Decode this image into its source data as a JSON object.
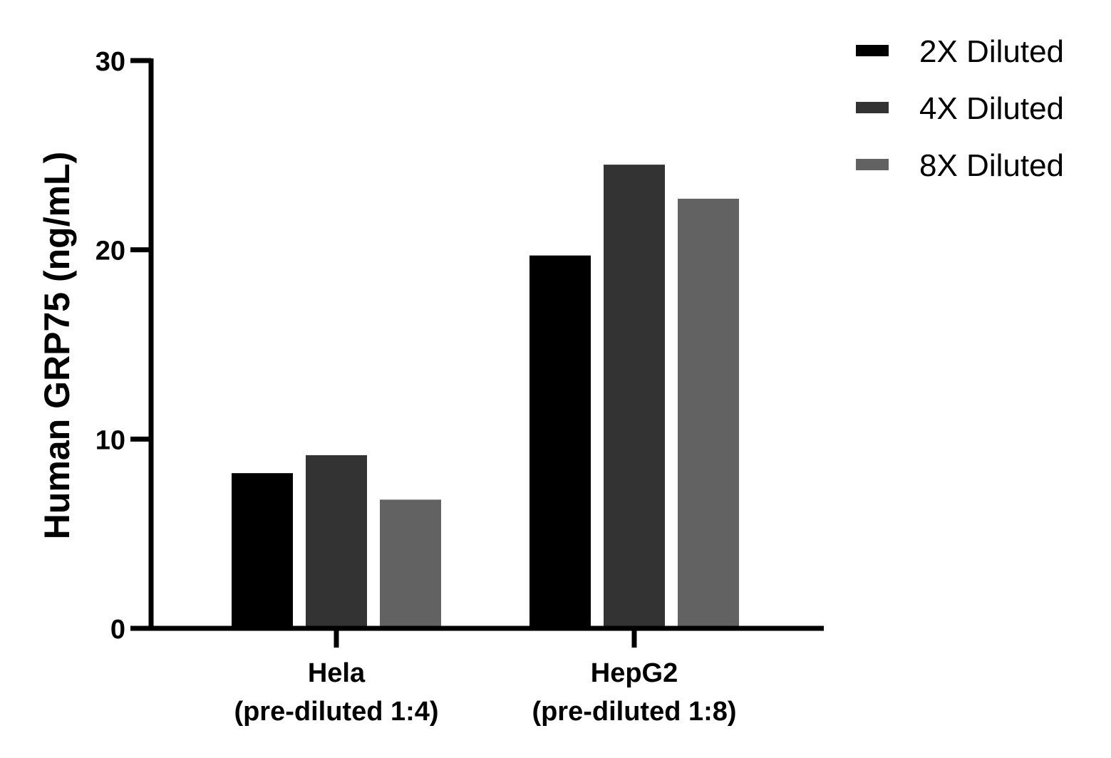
{
  "chart_data": {
    "type": "bar",
    "title": "",
    "xlabel": "",
    "ylabel": "Human GRP75 (ng/mL)",
    "ylim": [
      0,
      30
    ],
    "yticks": [
      "0",
      "10",
      "20",
      "30"
    ],
    "categories": [
      {
        "line1": "Hela",
        "line2": "(pre-diluted 1:4)"
      },
      {
        "line1": "HepG2",
        "line2": "(pre-diluted 1:8)"
      }
    ],
    "series": [
      {
        "name": "2X Diluted",
        "color": "#000000",
        "values": [
          8.2,
          19.7
        ]
      },
      {
        "name": "4X Diluted",
        "color": "#333333",
        "values": [
          9.15,
          24.5
        ]
      },
      {
        "name": "8X Diluted",
        "color": "#626262",
        "values": [
          6.8,
          22.7
        ]
      }
    ],
    "grid": false,
    "legend_position": "top-right"
  }
}
